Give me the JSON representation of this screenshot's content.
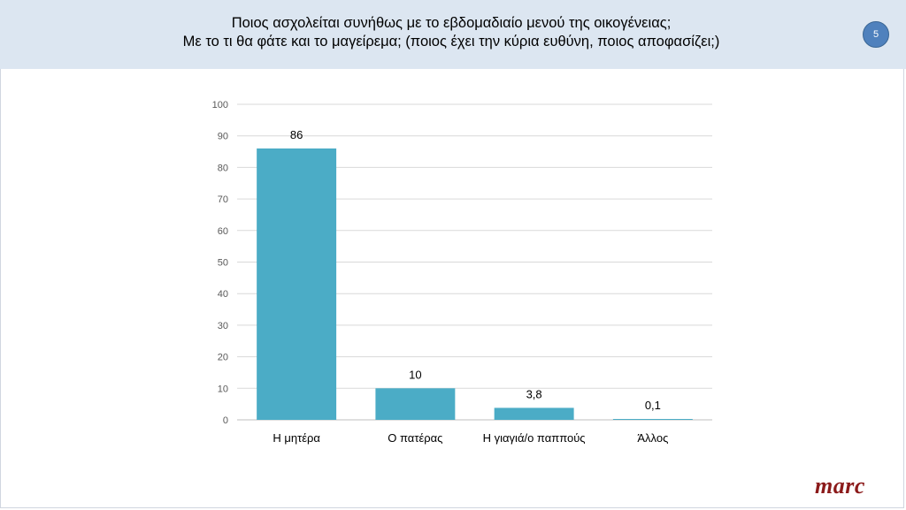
{
  "header": {
    "title_line1": "Ποιος ασχολείται συνήθως με το εβδομαδιαίο μενού της οικογένειας;",
    "title_line2": "Με το τι θα φάτε και το μαγείρεμα; (ποιος έχει την κύρια ευθύνη, ποιος αποφασίζει;)",
    "page_number": "5"
  },
  "logo_text": "marc",
  "colors": {
    "bar": "#4bacc6",
    "header_bg": "#dce6f1",
    "logo": "#8b1a1a"
  },
  "chart_data": {
    "type": "bar",
    "title": "",
    "xlabel": "",
    "ylabel": "",
    "categories": [
      "Η μητέρα",
      "Ο πατέρας",
      "Η γιαγιά/ο παππούς",
      "Άλλος"
    ],
    "values": [
      86,
      10,
      3.8,
      0.1
    ],
    "value_labels": [
      "86",
      "10",
      "3,8",
      "0,1"
    ],
    "ylim": [
      0,
      100
    ],
    "yticks": [
      0,
      10,
      20,
      30,
      40,
      50,
      60,
      70,
      80,
      90,
      100
    ],
    "grid": true,
    "legend": "none"
  }
}
